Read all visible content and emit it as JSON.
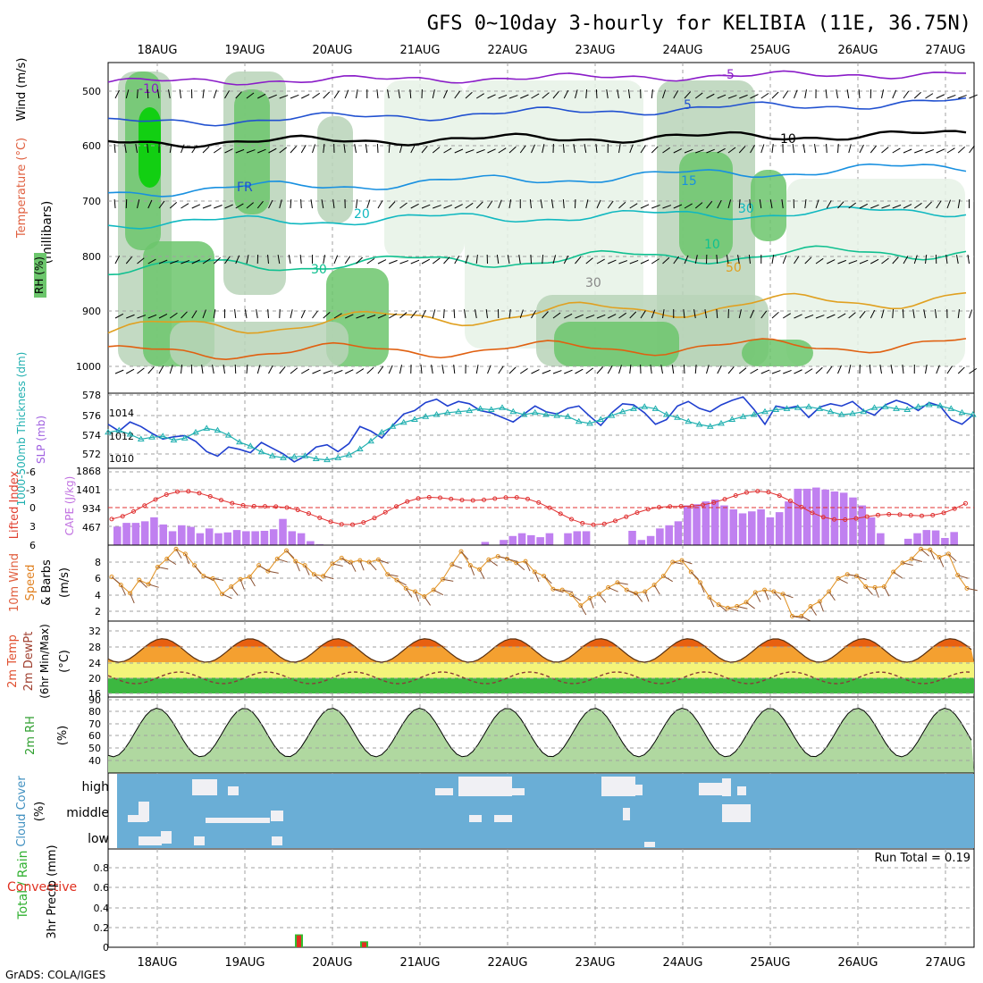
{
  "title": "GFS 0~10day 3-hourly for KELIBIA (11E, 36.75N)",
  "footer": "GrADS: COLA/IGES",
  "dates": [
    "18AUG",
    "19AUG",
    "20AUG",
    "21AUG",
    "22AUG",
    "23AUG",
    "24AUG",
    "25AUG",
    "26AUG",
    "27AUG"
  ],
  "colors": {
    "grid": "#a0a0a0",
    "rh_light": "#e6f2e6",
    "rh_mid": "#b9d3b9",
    "rh_high": "#6cc66c",
    "rh_top": "#00d000",
    "cloud_bg": "#6aaed6",
    "cape": "#c080f0",
    "lifted": "#e03030",
    "slp": "#1f3fcf",
    "thick": "#20b0b0",
    "wind10": "#e09020"
  },
  "panels": {
    "upper": {
      "ylabel_wind": "Wind (m/s)",
      "ylabel_temp": "Temperature (°C)",
      "ylabel_rh": "RH (%)",
      "ylabel_unit": "(millibars)",
      "levels": [
        "500",
        "600",
        "700",
        "800",
        "900",
        "1000"
      ],
      "isotherms": [
        "-10",
        "-5",
        "FR",
        "5",
        "10",
        "15",
        "20",
        "30",
        "10",
        "30",
        "50",
        "30"
      ]
    },
    "slp": {
      "ylabel_thick": "1000-500mb Thickness (dm)",
      "ylabel_slp": "SLP (mb)",
      "left_ticks": [
        "578",
        "576",
        "574",
        "572"
      ],
      "right_ticks": [
        "1014",
        "1012",
        "1010"
      ]
    },
    "cape": {
      "ylabel_li": "Lifted Index",
      "ylabel_cape": "CAPE (J/kg)",
      "left_ticks": [
        "-6",
        "-3",
        "0",
        "3",
        "6"
      ],
      "right_ticks": [
        "1868",
        "1401",
        "934",
        "467"
      ]
    },
    "wind": {
      "ylabel_a": "10m Wind",
      "ylabel_b": "Speed",
      "ylabel_c": "& Barbs",
      "ylabel_d": "(m/s)",
      "ticks": [
        "8",
        "6",
        "4",
        "2"
      ]
    },
    "temp": {
      "ylabel_a": "2m Temp",
      "ylabel_b": "2m DewPt",
      "ylabel_c": "(6hr Min/Max)",
      "ylabel_d": "(°C)",
      "ticks": [
        "32",
        "28",
        "24",
        "20",
        "16"
      ]
    },
    "rh": {
      "ylabel_a": "2m RH",
      "ylabel_b": "(%)",
      "ticks": [
        "90",
        "80",
        "70",
        "60",
        "50",
        "40"
      ]
    },
    "cloud": {
      "ylabel_a": "Cloud Cover",
      "ylabel_b": "(%)",
      "ticks": [
        "high",
        "middle",
        "low"
      ]
    },
    "precip": {
      "ylabel_a": "Total / Rain",
      "ylabel_b": "Convective",
      "ylabel_c": "3hr Precip (mm)",
      "ticks": [
        "0.8",
        "0.6",
        "0.4",
        "0.2",
        "0"
      ],
      "run_total": "Run Total = 0.19"
    }
  },
  "chart_data": {
    "type": "line",
    "x_unit": "3-hourly steps from 17AUG 12Z",
    "slp_mb": [
      1013.0,
      1012.4,
      1013.2,
      1012.8,
      1012.2,
      1011.7,
      1011.9,
      1012.0,
      1011.5,
      1010.6,
      1010.2,
      1011.0,
      1010.8,
      1010.5,
      1011.4,
      1010.9,
      1010.4,
      1009.7,
      1010.2,
      1011.0,
      1011.2,
      1010.6,
      1011.3,
      1012.8,
      1012.4,
      1011.8,
      1012.9,
      1013.9,
      1014.2,
      1014.9,
      1015.2,
      1014.6,
      1015.0,
      1014.8,
      1014.2,
      1014.0,
      1013.6,
      1013.2,
      1013.9,
      1014.6,
      1014.1,
      1013.9,
      1014.4,
      1014.6,
      1013.7,
      1012.9,
      1014.0,
      1014.8,
      1014.7,
      1014.0,
      1013.0,
      1013.4,
      1014.6,
      1015.0,
      1014.4,
      1014.1,
      1014.7,
      1015.1,
      1015.4,
      1014.3,
      1013.0,
      1014.6,
      1014.4,
      1014.6,
      1013.6,
      1014.5,
      1014.8,
      1014.6,
      1015.0,
      1014.2,
      1013.8,
      1014.7,
      1015.1,
      1014.8,
      1014.2,
      1014.9,
      1014.6,
      1013.4,
      1013.0,
      1013.8
    ],
    "thickness_dm": [
      574.2,
      574.4,
      574.0,
      573.5,
      573.7,
      573.8,
      573.4,
      573.6,
      574.2,
      574.6,
      574.4,
      573.9,
      573.2,
      572.8,
      572.2,
      571.8,
      571.6,
      571.7,
      571.8,
      571.5,
      571.4,
      571.6,
      571.9,
      572.5,
      573.3,
      574.2,
      574.8,
      575.2,
      575.5,
      575.8,
      576.0,
      576.2,
      576.3,
      576.4,
      576.6,
      576.5,
      576.7,
      576.3,
      576.0,
      576.2,
      576.0,
      575.9,
      575.8,
      575.3,
      575.1,
      575.5,
      575.9,
      576.3,
      576.6,
      576.8,
      576.6,
      576.0,
      575.7,
      575.3,
      575.0,
      574.8,
      575.1,
      575.5,
      575.8,
      576.0,
      576.3,
      576.5,
      576.6,
      576.7,
      576.8,
      576.6,
      576.3,
      576.0,
      576.1,
      576.3,
      576.7,
      576.8,
      576.6,
      576.5,
      576.8,
      577.0,
      576.9,
      576.6,
      576.2,
      576.0
    ],
    "cape_jkg": [
      467,
      560,
      560,
      600,
      700,
      520,
      350,
      500,
      460,
      300,
      420,
      300,
      320,
      380,
      350,
      350,
      360,
      400,
      660,
      350,
      300,
      100,
      20,
      10,
      10,
      10,
      10,
      10,
      10,
      10,
      0,
      0,
      0,
      0,
      0,
      10,
      0,
      10,
      0,
      10,
      80,
      10,
      130,
      230,
      300,
      250,
      200,
      300,
      10,
      300,
      350,
      350,
      10,
      10,
      0,
      10,
      360,
      130,
      230,
      420,
      500,
      600,
      1000,
      1030,
      1100,
      1150,
      1000,
      900,
      800,
      850,
      900,
      700,
      830,
      1100,
      1420,
      1420,
      1450,
      1400,
      1350,
      1320,
      1200,
      1000,
      700,
      300,
      10,
      10,
      160,
      300,
      380,
      370,
      180,
      330,
      0,
      150,
      150,
      10,
      0
    ],
    "wind10_ms": [
      6.2,
      5.2,
      4.2,
      5.8,
      5.3,
      7.4,
      8.4,
      9.6,
      9.0,
      7.6,
      6.3,
      6.0,
      4.1,
      5.0,
      5.9,
      6.2,
      7.6,
      6.9,
      8.4,
      9.4,
      8.1,
      7.6,
      6.5,
      6.3,
      7.8,
      8.5,
      8.0,
      8.2,
      8.0,
      8.3,
      6.5,
      5.8,
      4.8,
      4.4,
      3.8,
      4.6,
      5.9,
      7.7,
      9.3,
      7.6,
      7.1,
      8.3,
      8.7,
      8.4,
      7.9,
      8.1,
      6.8,
      6.3,
      4.7,
      4.6,
      4.0,
      2.7,
      3.6,
      4.1,
      4.9,
      5.5,
      4.6,
      4.2,
      4.4,
      5.2,
      6.3,
      8.0,
      8.2,
      6.8,
      5.5,
      3.7,
      2.8,
      2.4,
      2.6,
      3.1,
      4.3,
      4.6,
      4.4,
      4.1,
      1.4,
      1.4,
      2.6,
      3.2,
      4.4,
      6.0,
      6.5,
      6.3,
      5.0,
      4.9,
      5.0,
      6.8,
      7.9,
      8.4,
      9.6,
      9.5,
      8.6,
      9.0,
      6.4,
      4.8,
      4.4,
      5.5,
      6.3
    ]
  }
}
